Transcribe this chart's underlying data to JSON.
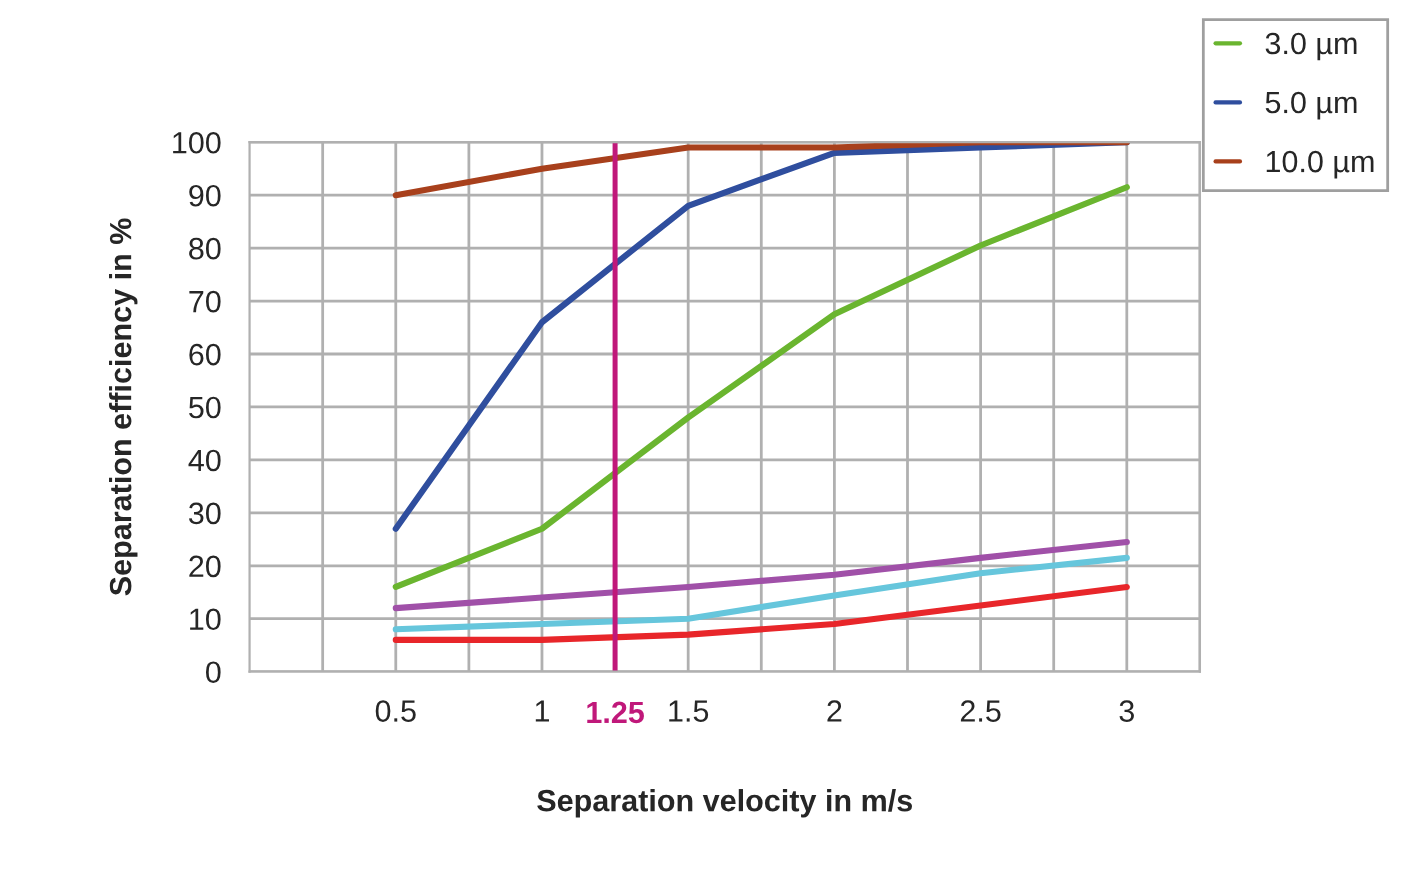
{
  "chart_data": {
    "type": "line",
    "xlabel": "Separation velocity in m/s",
    "ylabel": "Separation efficiency in %",
    "x": [
      0.5,
      1,
      1.5,
      2,
      2.5,
      3
    ],
    "series": [
      {
        "name": "3.0 µm",
        "color": "#6ab52f",
        "values": [
          16,
          27,
          48,
          67.5,
          80.5,
          91.5
        ]
      },
      {
        "name": "5.0 µm",
        "color": "#2f4e9e",
        "values": [
          27,
          66,
          88,
          98,
          99,
          100
        ]
      },
      {
        "name": "10.0 µm",
        "color": "#a8401c",
        "values": [
          90,
          95,
          99,
          99,
          100,
          100
        ]
      },
      {
        "color": "#a050a8",
        "values": [
          12,
          14,
          16,
          18.3,
          21.5,
          24.5
        ]
      },
      {
        "color": "#66c6dc",
        "values": [
          8,
          9,
          10,
          14.4,
          18.6,
          21.5
        ]
      },
      {
        "color": "#e8262a",
        "values": [
          6,
          6,
          7,
          9,
          12.5,
          16
        ]
      }
    ],
    "xlim": [
      0,
      3.25
    ],
    "xticks": [
      {
        "value": 0.25,
        "label": null
      },
      0.5,
      {
        "value": 0.75,
        "label": null
      },
      1,
      {
        "value": 1.25,
        "label": null
      },
      1.5,
      {
        "value": 1.75,
        "label": null
      },
      2,
      {
        "value": 2.25,
        "label": null
      },
      2.5,
      {
        "value": 2.75,
        "label": null
      },
      3,
      {
        "value": 3.25,
        "label": null
      }
    ],
    "ylim": [
      0,
      100
    ],
    "yticks": [
      0,
      10,
      20,
      30,
      40,
      50,
      60,
      70,
      80,
      90,
      100
    ],
    "ref_lines": [
      {
        "axis": "x",
        "value": 1.25,
        "label": "1.25",
        "color": "#c0187a"
      }
    ],
    "grid": true,
    "legend": "top right",
    "marker": "none",
    "line_style": "solid"
  }
}
